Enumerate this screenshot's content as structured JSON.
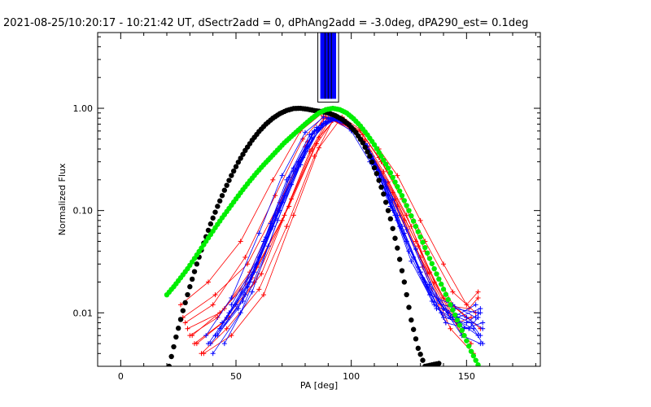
{
  "title": "2021-08-25/10:20:17 - 10:21:42 UT, dSectr2add = 0, dPhAng2add = -3.0deg, dPA290_est=  0.1deg",
  "colors": {
    "red": "#ff0000",
    "blue": "#0000ff",
    "black": "#000000",
    "green": "#00ee00"
  },
  "chart_data": {
    "type": "line",
    "xlabel": "PA [deg]",
    "ylabel": "Normalized Flux",
    "xlim": [
      -10,
      182
    ],
    "ylim": [
      0.003,
      5.5
    ],
    "yscale": "log",
    "grid": false,
    "x_ticks": [
      0,
      50,
      100,
      150
    ],
    "x_tick_labels": [
      "0",
      "50",
      "100",
      "150"
    ],
    "y_ticks": [
      0.01,
      0.1,
      1.0
    ],
    "y_tick_labels": [
      "0.01",
      "0.10",
      "1.00"
    ],
    "vertical_band": {
      "x": [
        85.5,
        94.5
      ],
      "y_from": 1.15,
      "colors": [
        "#000000",
        "#0000ff"
      ]
    },
    "series": [
      {
        "color": "#000000",
        "style": "dots",
        "x": [
          21,
          24,
          27,
          30,
          33,
          36,
          39,
          42,
          45,
          48,
          51,
          54,
          57,
          60,
          63,
          66,
          69,
          72,
          75,
          78,
          81,
          84,
          87,
          90,
          93,
          96,
          99,
          102,
          105,
          108,
          111,
          114,
          117,
          120,
          123,
          126,
          129,
          132,
          135,
          138
        ],
        "y": [
          0.003,
          0.0058,
          0.0105,
          0.018,
          0.03,
          0.048,
          0.074,
          0.11,
          0.158,
          0.22,
          0.297,
          0.387,
          0.487,
          0.593,
          0.7,
          0.8,
          0.886,
          0.953,
          0.995,
          1.0,
          0.98,
          0.95,
          0.93,
          0.9,
          0.85,
          0.78,
          0.69,
          0.58,
          0.46,
          0.34,
          0.23,
          0.145,
          0.083,
          0.043,
          0.02,
          0.0085,
          0.0045,
          0.003,
          0.0031,
          0.0032
        ]
      },
      {
        "color": "#00ee00",
        "style": "dots",
        "x": [
          20,
          23,
          26,
          29,
          32,
          35,
          38,
          41,
          44,
          47,
          50,
          53,
          56,
          59,
          62,
          65,
          68,
          71,
          74,
          77,
          80,
          83,
          86,
          89,
          92,
          95,
          98,
          101,
          104,
          107,
          110,
          113,
          116,
          119,
          122,
          125,
          128,
          131,
          134,
          137,
          140,
          143,
          146,
          149,
          152,
          155
        ],
        "y": [
          0.015,
          0.018,
          0.022,
          0.027,
          0.034,
          0.043,
          0.054,
          0.068,
          0.085,
          0.105,
          0.13,
          0.16,
          0.195,
          0.235,
          0.28,
          0.33,
          0.39,
          0.46,
          0.53,
          0.61,
          0.7,
          0.8,
          0.9,
          0.97,
          1.0,
          0.97,
          0.9,
          0.79,
          0.67,
          0.55,
          0.44,
          0.34,
          0.26,
          0.19,
          0.14,
          0.1,
          0.07,
          0.049,
          0.034,
          0.024,
          0.017,
          0.012,
          0.0085,
          0.006,
          0.0042,
          0.0031
        ]
      }
    ],
    "red_curves": [
      {
        "x": [
          26,
          38,
          52,
          66,
          78,
          87,
          96,
          104,
          112,
          120,
          130,
          140,
          150,
          155
        ],
        "y": [
          0.012,
          0.02,
          0.05,
          0.2,
          0.6,
          0.88,
          0.82,
          0.62,
          0.4,
          0.22,
          0.08,
          0.03,
          0.012,
          0.016
        ]
      },
      {
        "x": [
          28,
          40,
          54,
          67,
          79,
          88,
          97,
          105,
          113,
          122,
          132,
          144,
          156
        ],
        "y": [
          0.008,
          0.012,
          0.035,
          0.14,
          0.5,
          0.84,
          0.78,
          0.55,
          0.3,
          0.13,
          0.04,
          0.012,
          0.007
        ]
      },
      {
        "x": [
          30,
          42,
          56,
          68,
          80,
          88,
          98,
          106,
          114,
          124,
          134,
          146,
          152
        ],
        "y": [
          0.006,
          0.009,
          0.025,
          0.1,
          0.42,
          0.8,
          0.74,
          0.48,
          0.24,
          0.09,
          0.025,
          0.008,
          0.009
        ]
      },
      {
        "x": [
          27,
          41,
          55,
          69,
          81,
          89,
          99,
          107,
          116,
          126,
          136,
          148
        ],
        "y": [
          0.009,
          0.015,
          0.03,
          0.12,
          0.47,
          0.82,
          0.7,
          0.42,
          0.19,
          0.07,
          0.02,
          0.006
        ]
      },
      {
        "x": [
          32,
          44,
          58,
          70,
          82,
          90,
          100,
          108,
          118,
          128,
          140,
          150
        ],
        "y": [
          0.005,
          0.008,
          0.02,
          0.08,
          0.38,
          0.78,
          0.66,
          0.38,
          0.15,
          0.05,
          0.014,
          0.009
        ]
      },
      {
        "x": [
          29,
          43,
          57,
          71,
          83,
          91,
          101,
          109,
          119,
          129,
          139,
          151,
          155
        ],
        "y": [
          0.007,
          0.01,
          0.022,
          0.09,
          0.4,
          0.79,
          0.62,
          0.34,
          0.13,
          0.045,
          0.012,
          0.011,
          0.014
        ]
      },
      {
        "x": [
          35,
          46,
          60,
          72,
          84,
          92,
          102,
          110,
          120,
          130,
          142,
          152
        ],
        "y": [
          0.004,
          0.007,
          0.017,
          0.07,
          0.34,
          0.76,
          0.58,
          0.3,
          0.11,
          0.035,
          0.01,
          0.005
        ]
      },
      {
        "x": [
          31,
          45,
          59,
          73,
          85,
          93,
          103,
          111,
          121,
          131,
          141
        ],
        "y": [
          0.006,
          0.011,
          0.028,
          0.11,
          0.45,
          0.81,
          0.55,
          0.26,
          0.09,
          0.028,
          0.008
        ]
      },
      {
        "x": [
          33,
          47,
          61,
          74,
          86,
          94,
          104,
          112,
          122,
          132,
          144,
          154
        ],
        "y": [
          0.005,
          0.009,
          0.024,
          0.13,
          0.52,
          0.83,
          0.6,
          0.33,
          0.14,
          0.05,
          0.016,
          0.01
        ]
      },
      {
        "x": [
          36,
          48,
          62,
          75,
          86,
          95,
          105,
          113,
          123,
          133,
          143,
          153
        ],
        "y": [
          0.004,
          0.006,
          0.015,
          0.09,
          0.41,
          0.77,
          0.5,
          0.23,
          0.08,
          0.024,
          0.007,
          0.004
        ]
      }
    ],
    "blue_curves": [
      {
        "x": [
          38,
          50,
          62,
          72,
          82,
          90,
          98,
          106,
          114,
          122,
          132,
          142,
          152,
          156
        ],
        "y": [
          0.005,
          0.012,
          0.05,
          0.2,
          0.55,
          0.8,
          0.72,
          0.45,
          0.2,
          0.07,
          0.02,
          0.01,
          0.008,
          0.006
        ]
      },
      {
        "x": [
          40,
          52,
          64,
          74,
          83,
          91,
          99,
          107,
          115,
          123,
          133,
          143,
          153,
          157
        ],
        "y": [
          0.004,
          0.01,
          0.045,
          0.18,
          0.5,
          0.78,
          0.68,
          0.4,
          0.17,
          0.06,
          0.018,
          0.009,
          0.007,
          0.005
        ]
      },
      {
        "x": [
          42,
          54,
          66,
          76,
          84,
          92,
          100,
          108,
          116,
          124,
          134,
          144,
          154
        ],
        "y": [
          0.006,
          0.015,
          0.07,
          0.25,
          0.6,
          0.8,
          0.65,
          0.36,
          0.14,
          0.05,
          0.015,
          0.012,
          0.009
        ]
      },
      {
        "x": [
          44,
          56,
          67,
          77,
          85,
          93,
          101,
          109,
          117,
          125,
          135,
          145,
          155
        ],
        "y": [
          0.008,
          0.02,
          0.09,
          0.3,
          0.65,
          0.82,
          0.62,
          0.32,
          0.12,
          0.04,
          0.013,
          0.011,
          0.01
        ]
      },
      {
        "x": [
          37,
          48,
          60,
          70,
          80,
          88,
          96,
          104,
          112,
          120,
          130,
          140,
          150,
          157
        ],
        "y": [
          0.006,
          0.014,
          0.06,
          0.22,
          0.58,
          0.82,
          0.76,
          0.5,
          0.24,
          0.09,
          0.025,
          0.011,
          0.009,
          0.007
        ]
      },
      {
        "x": [
          45,
          57,
          68,
          78,
          86,
          94,
          102,
          110,
          118,
          126,
          136,
          146,
          156
        ],
        "y": [
          0.005,
          0.016,
          0.08,
          0.28,
          0.62,
          0.8,
          0.58,
          0.28,
          0.1,
          0.032,
          0.012,
          0.009,
          0.011
        ]
      },
      {
        "x": [
          43,
          55,
          65,
          75,
          84,
          92,
          100,
          108,
          117,
          127,
          137,
          147,
          155
        ],
        "y": [
          0.007,
          0.018,
          0.075,
          0.26,
          0.6,
          0.79,
          0.6,
          0.3,
          0.11,
          0.035,
          0.011,
          0.008,
          0.006
        ]
      },
      {
        "x": [
          46,
          58,
          69,
          79,
          87,
          95,
          103,
          111,
          119,
          129,
          139,
          149,
          157
        ],
        "y": [
          0.009,
          0.025,
          0.1,
          0.33,
          0.68,
          0.8,
          0.55,
          0.25,
          0.09,
          0.028,
          0.01,
          0.007,
          0.008
        ]
      },
      {
        "x": [
          39,
          51,
          63,
          73,
          83,
          91,
          99,
          107,
          115,
          124,
          134,
          144,
          154
        ],
        "y": [
          0.005,
          0.011,
          0.055,
          0.21,
          0.56,
          0.81,
          0.7,
          0.43,
          0.19,
          0.065,
          0.019,
          0.009,
          0.012
        ]
      },
      {
        "x": [
          41,
          53,
          65,
          75,
          85,
          93,
          101,
          109,
          118,
          128,
          138,
          148,
          156
        ],
        "y": [
          0.006,
          0.013,
          0.065,
          0.24,
          0.6,
          0.8,
          0.63,
          0.34,
          0.13,
          0.042,
          0.013,
          0.006,
          0.005
        ]
      },
      {
        "x": [
          47,
          59,
          70,
          80,
          88,
          96,
          104,
          112,
          120,
          130,
          140,
          150,
          156
        ],
        "y": [
          0.01,
          0.03,
          0.12,
          0.38,
          0.72,
          0.78,
          0.5,
          0.22,
          0.08,
          0.025,
          0.009,
          0.008,
          0.01
        ]
      },
      {
        "x": [
          48,
          60,
          71,
          81,
          89,
          97,
          105,
          113,
          121,
          131,
          141,
          151,
          155
        ],
        "y": [
          0.012,
          0.035,
          0.14,
          0.42,
          0.74,
          0.76,
          0.46,
          0.2,
          0.07,
          0.022,
          0.008,
          0.007,
          0.009
        ]
      }
    ]
  }
}
